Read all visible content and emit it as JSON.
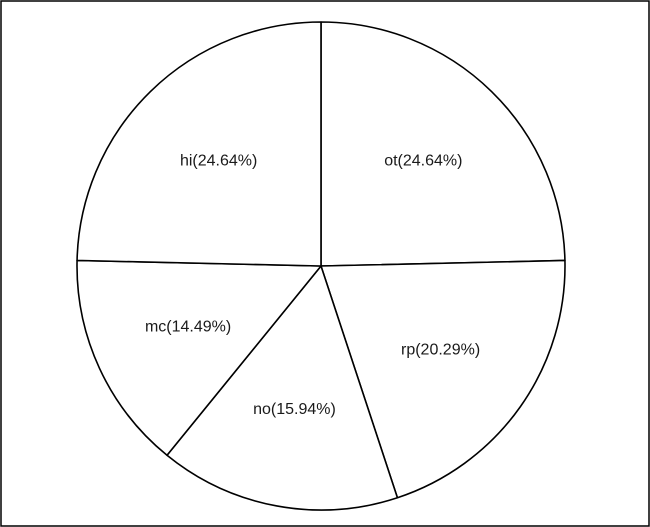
{
  "chart_data": {
    "type": "pie",
    "title": "",
    "legend": "none",
    "start_angle_deg": 0,
    "direction": "clockwise",
    "slices": [
      {
        "label": "ot",
        "value": 24.64,
        "display": "ot(24.64%)"
      },
      {
        "label": "rp",
        "value": 20.29,
        "display": "rp(20.29%)"
      },
      {
        "label": "no",
        "value": 15.94,
        "display": "no(15.94%)"
      },
      {
        "label": "mc",
        "value": 14.49,
        "display": "mc(14.49%)"
      },
      {
        "label": "hi",
        "value": 24.64,
        "display": "hi(24.64%)"
      }
    ],
    "colors": {
      "fill": "#ffffff",
      "stroke": "#000000",
      "text": "#1a1a1a",
      "frame": "#000000"
    }
  }
}
